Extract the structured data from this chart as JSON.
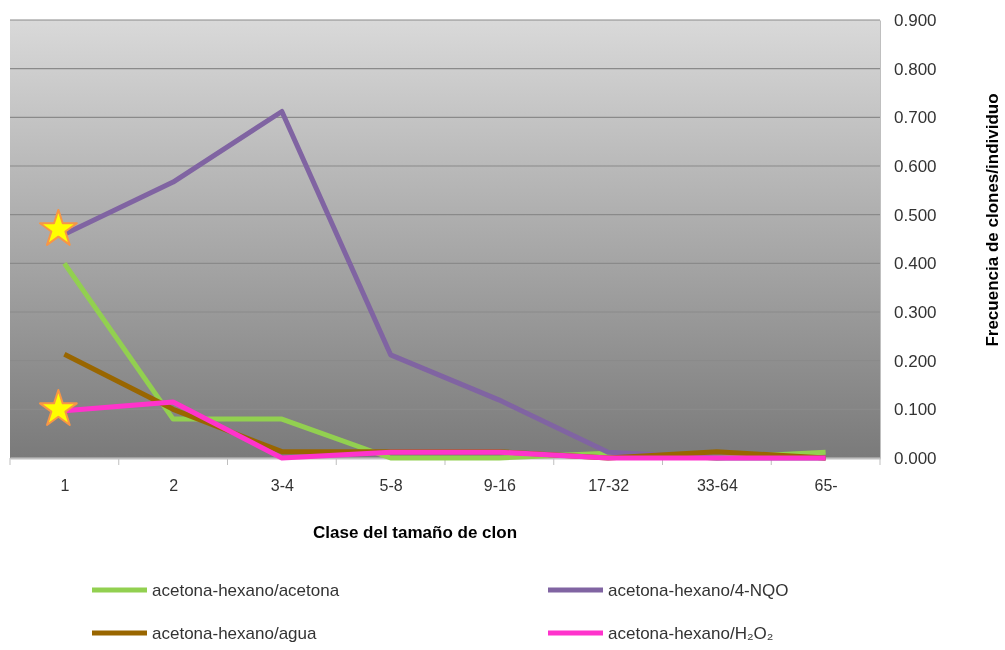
{
  "chart_data": {
    "type": "line",
    "xlabel": "Clase del tamaño de clon",
    "ylabel": "Frecuencia de clones/individuo",
    "categories": [
      "1",
      "2",
      "3-4",
      "5-8",
      "9-16",
      "17-32",
      "33-64",
      "65-"
    ],
    "series": [
      {
        "name": "acetona-hexano/acetona",
        "color": "#92d050",
        "values": [
          0.4,
          0.08,
          0.08,
          0,
          0,
          0.01,
          0,
          0.012
        ]
      },
      {
        "name": "acetona-hexano/4-NQO",
        "color": "#8064a2",
        "values": [
          0.46,
          0.567,
          0.712,
          0.212,
          0.119,
          0.012,
          0,
          0
        ]
      },
      {
        "name": "acetona-hexano/agua",
        "color": "#996600",
        "values": [
          0.213,
          0.1,
          0.013,
          0.013,
          0.013,
          0,
          0.013,
          0
        ]
      },
      {
        "name": "acetona-hexano/H₂O₂",
        "color": "#ff33cc",
        "values": [
          0.097,
          0.115,
          0,
          0.012,
          0.012,
          0,
          0,
          0
        ]
      },
      {
        "type": "scatter",
        "color": "#ffff00",
        "marker": "star",
        "x": [
          "1",
          "1"
        ],
        "values": [
          0.47,
          0.1
        ]
      }
    ],
    "ylim": [
      0,
      0.9
    ],
    "yticks": [
      {
        "value": 0,
        "label": "0.000"
      },
      {
        "value": 0.1,
        "label": "0.100"
      },
      {
        "value": 0.2,
        "label": "0.200"
      },
      {
        "value": 0.3,
        "label": "0.300"
      },
      {
        "value": 0.4,
        "label": "0.400"
      },
      {
        "value": 0.5,
        "label": "0.500"
      },
      {
        "value": 0.6,
        "label": "0.600"
      },
      {
        "value": 0.7,
        "label": "0.700"
      },
      {
        "value": 0.8,
        "label": "0.800"
      },
      {
        "value": 0.9,
        "label": "0.900"
      }
    ],
    "grid": "y",
    "legend": "bottom",
    "marker": "none",
    "line_style": "solid"
  }
}
